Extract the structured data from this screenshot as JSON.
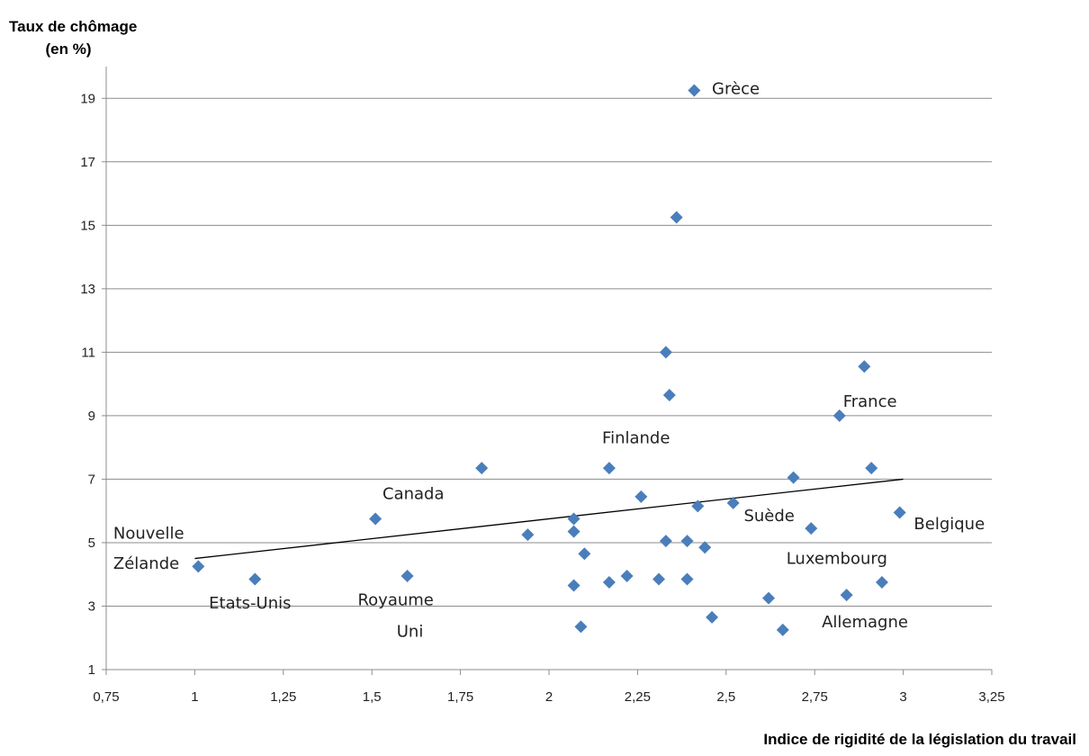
{
  "chart_data": {
    "type": "scatter",
    "ylabel_line1": "Taux de chômage",
    "ylabel_line2": "(en %)",
    "xlabel": "Indice de rigidité de la législation du travail",
    "xlim": [
      0.75,
      3.25
    ],
    "ylim": [
      1,
      20
    ],
    "x_ticks": [
      "0,75",
      "1",
      "1,25",
      "1,5",
      "1,75",
      "2",
      "2,25",
      "2,5",
      "2,75",
      "3",
      "3,25"
    ],
    "x_tick_values": [
      0.75,
      1,
      1.25,
      1.5,
      1.75,
      2,
      2.25,
      2.5,
      2.75,
      3,
      3.25
    ],
    "y_ticks": [
      "1",
      "3",
      "5",
      "7",
      "9",
      "11",
      "13",
      "15",
      "17",
      "19"
    ],
    "y_tick_values": [
      1,
      3,
      5,
      7,
      9,
      11,
      13,
      15,
      17,
      19
    ],
    "grid": "horizontal",
    "marker": "diamond",
    "marker_color": "#4a7ebb",
    "trendline": {
      "x": [
        1.0,
        3.0
      ],
      "y": [
        4.5,
        7.0
      ],
      "color": "#000000"
    },
    "points": [
      {
        "x": 2.41,
        "y": 19.25
      },
      {
        "x": 2.36,
        "y": 15.25
      },
      {
        "x": 2.33,
        "y": 11.0
      },
      {
        "x": 2.34,
        "y": 9.65
      },
      {
        "x": 2.89,
        "y": 10.55
      },
      {
        "x": 2.82,
        "y": 9.0
      },
      {
        "x": 1.81,
        "y": 7.35
      },
      {
        "x": 2.17,
        "y": 7.35
      },
      {
        "x": 2.91,
        "y": 7.35
      },
      {
        "x": 2.69,
        "y": 7.05
      },
      {
        "x": 2.26,
        "y": 6.45
      },
      {
        "x": 2.52,
        "y": 6.25
      },
      {
        "x": 2.42,
        "y": 6.15
      },
      {
        "x": 2.99,
        "y": 5.95
      },
      {
        "x": 1.51,
        "y": 5.75
      },
      {
        "x": 2.07,
        "y": 5.75
      },
      {
        "x": 2.74,
        "y": 5.45
      },
      {
        "x": 2.07,
        "y": 5.35
      },
      {
        "x": 1.94,
        "y": 5.25
      },
      {
        "x": 2.33,
        "y": 5.05
      },
      {
        "x": 2.39,
        "y": 5.05
      },
      {
        "x": 2.44,
        "y": 4.85
      },
      {
        "x": 2.1,
        "y": 4.65
      },
      {
        "x": 1.01,
        "y": 4.25
      },
      {
        "x": 1.6,
        "y": 3.95
      },
      {
        "x": 2.22,
        "y": 3.95
      },
      {
        "x": 1.17,
        "y": 3.85
      },
      {
        "x": 2.31,
        "y": 3.85
      },
      {
        "x": 2.39,
        "y": 3.85
      },
      {
        "x": 2.17,
        "y": 3.75
      },
      {
        "x": 2.94,
        "y": 3.75
      },
      {
        "x": 2.07,
        "y": 3.65
      },
      {
        "x": 2.84,
        "y": 3.35
      },
      {
        "x": 2.62,
        "y": 3.25
      },
      {
        "x": 2.46,
        "y": 2.65
      },
      {
        "x": 2.09,
        "y": 2.35
      },
      {
        "x": 2.66,
        "y": 2.25
      }
    ],
    "annotations": [
      {
        "text": "Grèce",
        "x": 2.46,
        "y": 19.3
      },
      {
        "text": "France",
        "x": 2.83,
        "y": 9.45
      },
      {
        "text": "Finlande",
        "x": 2.15,
        "y": 8.3
      },
      {
        "text": "Canada",
        "x": 1.53,
        "y": 6.55
      },
      {
        "text": "Nouvelle",
        "x": 0.77,
        "y": 5.3
      },
      {
        "text": "Zélande",
        "x": 0.77,
        "y": 4.35
      },
      {
        "text": "Etats-Unis",
        "x": 1.04,
        "y": 3.1
      },
      {
        "text": "Royaume",
        "x": 1.46,
        "y": 3.2
      },
      {
        "text": "Uni",
        "x": 1.57,
        "y": 2.2
      },
      {
        "text": "Suède",
        "x": 2.55,
        "y": 5.85
      },
      {
        "text": "Belgique",
        "x": 3.03,
        "y": 5.6
      },
      {
        "text": "Luxembourg",
        "x": 2.67,
        "y": 4.5
      },
      {
        "text": "Allemagne",
        "x": 2.77,
        "y": 2.5
      }
    ]
  }
}
